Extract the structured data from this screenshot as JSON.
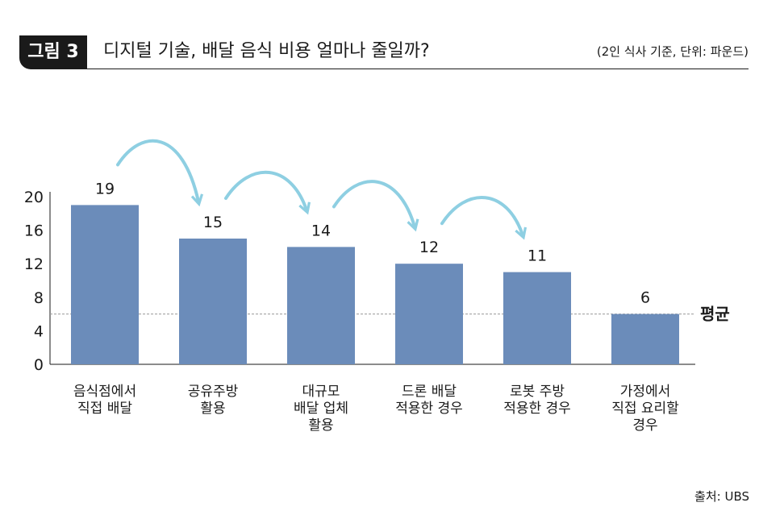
{
  "header": {
    "badge": "그림 3",
    "title": "디지털 기술, 배달 음식 비용 얼마나 줄일까?",
    "unit": "(2인 식사 기준, 단위: 파운드)"
  },
  "source": "출처: UBS",
  "colors": {
    "bar": "#6b8cba",
    "arrow": "#8ecfe2",
    "average_line": "#999999",
    "text": "#1a1a1a"
  },
  "chart_data": {
    "type": "bar",
    "categories": [
      [
        "음식점에서",
        "직접 배달"
      ],
      [
        "공유주방",
        "활용"
      ],
      [
        "대규모",
        "배달 업체",
        "활용"
      ],
      [
        "드론 배달",
        "적용한 경우"
      ],
      [
        "로봇 주방",
        "적용한 경우"
      ],
      [
        "가정에서",
        "직접 요리할",
        "경우"
      ]
    ],
    "values": [
      19,
      15,
      14,
      12,
      11,
      6
    ],
    "data_labels": [
      "19",
      "15",
      "14",
      "12",
      "11",
      "6"
    ],
    "y_ticks": [
      "0",
      "4",
      "8",
      "12",
      "16",
      "20"
    ],
    "ylim": [
      0,
      20
    ],
    "average": {
      "label": "평균",
      "value": 6
    },
    "grid": false,
    "annotations": "curved arrows between consecutive bars"
  }
}
